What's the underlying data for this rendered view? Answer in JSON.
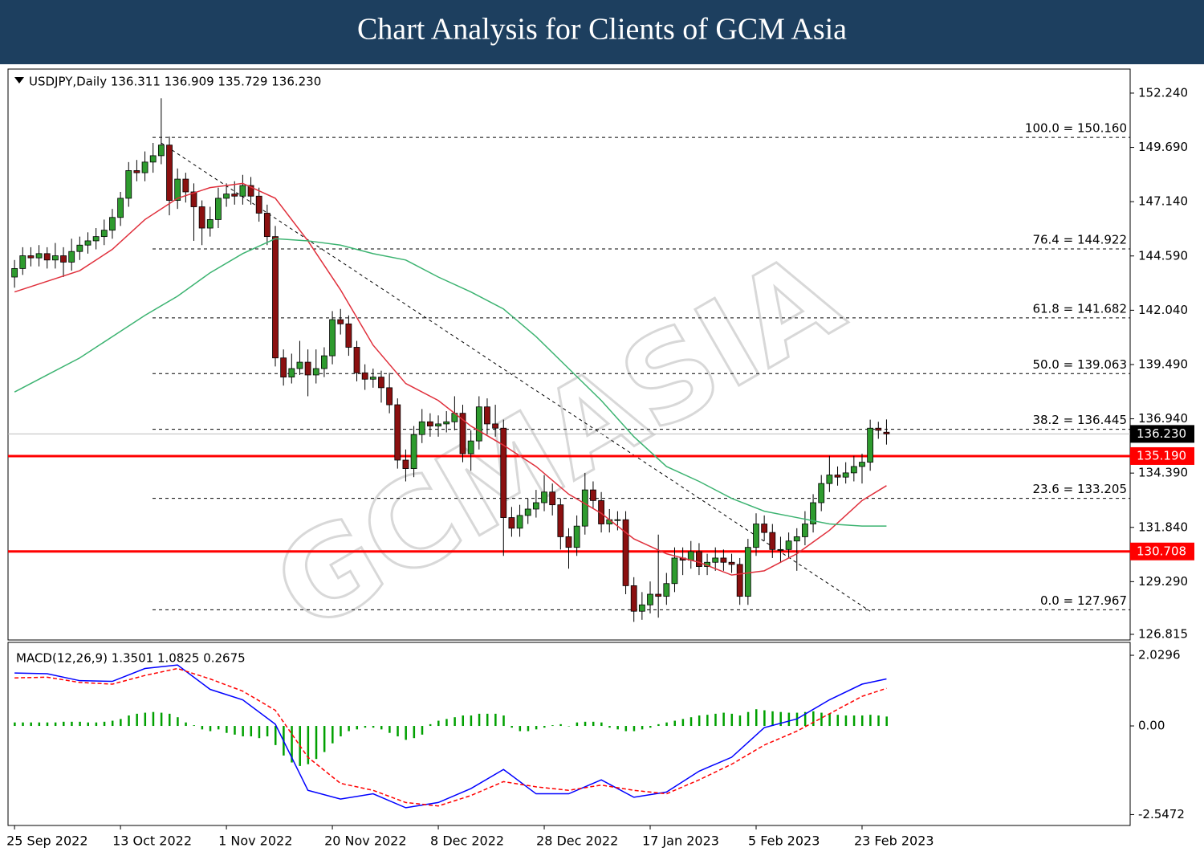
{
  "header": {
    "title": "Chart Analysis for Clients of GCM Asia",
    "watermark": "GCMASIA"
  },
  "chart_data": [
    {
      "type": "candlestick",
      "label": "USDJPY,Daily  136.311 136.909 135.729 136.230",
      "bull_color": "#2e9b2e",
      "bear_color": "#8b1010",
      "xlim": [
        -0.8,
        136.9
      ],
      "ylim": [
        126.55,
        153.37
      ],
      "yticks": [
        {
          "value": 152.24,
          "label": "152.240"
        },
        {
          "value": 149.69,
          "label": "149.690"
        },
        {
          "value": 147.14,
          "label": "147.140"
        },
        {
          "value": 144.59,
          "label": "144.590"
        },
        {
          "value": 142.04,
          "label": "142.040"
        },
        {
          "value": 139.49,
          "label": "139.490"
        },
        {
          "value": 136.94,
          "label": "136.940"
        },
        {
          "value": 134.39,
          "label": "134.390"
        },
        {
          "value": 131.84,
          "label": "131.840"
        },
        {
          "value": 129.29,
          "label": "129.290"
        },
        126.815
      ],
      "candles": [
        [
          143.6,
          144.4,
          143.1,
          144.0
        ],
        [
          144.0,
          145.0,
          143.7,
          144.6
        ],
        [
          144.6,
          145.0,
          144.1,
          144.5
        ],
        [
          144.5,
          145.1,
          144.1,
          144.7
        ],
        [
          144.7,
          145.0,
          144.0,
          144.4
        ],
        [
          144.4,
          145.2,
          144.0,
          144.6
        ],
        [
          144.6,
          145.0,
          143.6,
          144.3
        ],
        [
          144.3,
          145.4,
          143.9,
          144.8
        ],
        [
          144.8,
          145.5,
          144.4,
          145.1
        ],
        [
          145.1,
          145.7,
          144.7,
          145.3
        ],
        [
          145.3,
          145.9,
          144.9,
          145.5
        ],
        [
          145.5,
          146.3,
          145.1,
          145.8
        ],
        [
          145.8,
          146.8,
          145.4,
          146.4
        ],
        [
          146.4,
          147.6,
          146.0,
          147.3
        ],
        [
          147.3,
          149.0,
          146.9,
          148.6
        ],
        [
          148.6,
          149.1,
          148.1,
          148.5
        ],
        [
          148.5,
          149.5,
          148.1,
          149.0
        ],
        [
          149.0,
          149.9,
          148.5,
          149.3
        ],
        [
          149.3,
          152.0,
          148.9,
          149.8
        ],
        [
          149.8,
          150.2,
          146.5,
          147.2
        ],
        [
          147.2,
          148.7,
          146.8,
          148.2
        ],
        [
          148.2,
          148.5,
          147.1,
          147.6
        ],
        [
          147.6,
          148.0,
          145.3,
          146.9
        ],
        [
          146.9,
          147.2,
          145.1,
          145.9
        ],
        [
          145.9,
          146.9,
          145.5,
          146.3
        ],
        [
          146.3,
          147.8,
          145.9,
          147.3
        ],
        [
          147.3,
          148.0,
          146.9,
          147.5
        ],
        [
          147.5,
          148.1,
          147.0,
          147.4
        ],
        [
          147.4,
          148.4,
          147.0,
          147.9
        ],
        [
          147.9,
          148.3,
          147.0,
          147.4
        ],
        [
          147.4,
          147.8,
          146.2,
          146.6
        ],
        [
          146.6,
          147.0,
          145.1,
          145.5
        ],
        [
          145.5,
          146.0,
          139.4,
          139.8
        ],
        [
          139.8,
          140.2,
          138.5,
          138.9
        ],
        [
          138.9,
          140.0,
          138.6,
          139.3
        ],
        [
          139.3,
          140.6,
          139.0,
          139.6
        ],
        [
          139.6,
          140.2,
          138.0,
          139.0
        ],
        [
          139.0,
          140.2,
          138.6,
          139.3
        ],
        [
          139.3,
          140.3,
          138.9,
          139.9
        ],
        [
          139.9,
          142.0,
          139.5,
          141.6
        ],
        [
          141.6,
          142.1,
          140.9,
          141.4
        ],
        [
          141.4,
          141.8,
          139.9,
          140.3
        ],
        [
          140.3,
          140.6,
          138.7,
          139.1
        ],
        [
          139.1,
          139.5,
          138.3,
          138.8
        ],
        [
          138.8,
          139.3,
          138.4,
          138.9
        ],
        [
          138.9,
          139.2,
          137.7,
          138.4
        ],
        [
          138.4,
          139.1,
          137.2,
          137.6
        ],
        [
          137.6,
          137.9,
          134.6,
          135.0
        ],
        [
          135.0,
          135.5,
          134.0,
          134.6
        ],
        [
          134.6,
          136.6,
          134.2,
          136.2
        ],
        [
          136.2,
          137.4,
          135.8,
          136.8
        ],
        [
          136.8,
          137.2,
          136.1,
          136.6
        ],
        [
          136.6,
          137.1,
          136.1,
          136.7
        ],
        [
          136.7,
          137.3,
          136.3,
          136.8
        ],
        [
          136.8,
          138.0,
          136.4,
          137.2
        ],
        [
          137.2,
          137.6,
          134.9,
          135.3
        ],
        [
          135.3,
          136.4,
          134.5,
          135.9
        ],
        [
          135.9,
          138.0,
          135.5,
          137.5
        ],
        [
          137.5,
          137.9,
          136.2,
          136.7
        ],
        [
          136.7,
          137.6,
          136.1,
          136.5
        ],
        [
          136.5,
          136.9,
          130.5,
          132.3
        ],
        [
          132.3,
          132.8,
          131.4,
          131.8
        ],
        [
          131.8,
          132.9,
          131.4,
          132.4
        ],
        [
          132.4,
          133.2,
          132.0,
          132.7
        ],
        [
          132.7,
          133.6,
          132.3,
          133.0
        ],
        [
          133.0,
          134.3,
          132.6,
          133.5
        ],
        [
          133.5,
          133.9,
          132.4,
          132.9
        ],
        [
          132.9,
          133.2,
          130.8,
          131.4
        ],
        [
          131.4,
          131.8,
          129.9,
          130.9
        ],
        [
          130.9,
          132.4,
          130.5,
          131.9
        ],
        [
          131.9,
          134.4,
          131.5,
          133.6
        ],
        [
          133.6,
          134.0,
          132.7,
          133.1
        ],
        [
          133.1,
          133.5,
          131.6,
          132.0
        ],
        [
          132.0,
          132.7,
          131.6,
          132.2
        ],
        [
          132.2,
          132.6,
          131.7,
          132.2
        ],
        [
          132.2,
          132.6,
          128.7,
          129.1
        ],
        [
          129.1,
          129.5,
          127.4,
          127.9
        ],
        [
          127.9,
          128.8,
          127.5,
          128.2
        ],
        [
          128.2,
          129.3,
          127.8,
          128.7
        ],
        [
          128.7,
          131.5,
          127.6,
          128.6
        ],
        [
          128.6,
          129.7,
          128.2,
          129.2
        ],
        [
          129.2,
          130.9,
          128.8,
          130.4
        ],
        [
          130.4,
          130.9,
          129.6,
          130.3
        ],
        [
          130.3,
          131.2,
          129.9,
          130.7
        ],
        [
          130.7,
          131.1,
          129.6,
          130.0
        ],
        [
          130.0,
          130.6,
          129.6,
          130.2
        ],
        [
          130.2,
          130.9,
          129.8,
          130.4
        ],
        [
          130.4,
          130.8,
          129.8,
          130.2
        ],
        [
          130.2,
          130.6,
          129.7,
          130.1
        ],
        [
          130.1,
          130.4,
          128.2,
          128.6
        ],
        [
          128.6,
          131.3,
          128.2,
          130.9
        ],
        [
          130.9,
          132.5,
          130.5,
          132.0
        ],
        [
          132.0,
          132.4,
          131.2,
          131.6
        ],
        [
          131.6,
          132.0,
          130.4,
          130.8
        ],
        [
          130.8,
          131.4,
          130.2,
          130.8
        ],
        [
          130.8,
          131.6,
          130.4,
          131.2
        ],
        [
          131.2,
          131.8,
          129.8,
          131.4
        ],
        [
          131.4,
          132.6,
          131.0,
          132.0
        ],
        [
          132.0,
          133.4,
          131.6,
          133.0
        ],
        [
          133.0,
          134.3,
          132.6,
          133.9
        ],
        [
          133.9,
          135.2,
          133.5,
          134.3
        ],
        [
          134.3,
          134.7,
          133.8,
          134.2
        ],
        [
          134.2,
          134.9,
          133.9,
          134.4
        ],
        [
          134.4,
          135.2,
          134.0,
          134.7
        ],
        [
          134.7,
          135.3,
          133.9,
          134.9
        ],
        [
          134.9,
          136.9,
          134.5,
          136.5
        ],
        [
          136.5,
          136.8,
          136.0,
          136.4
        ],
        [
          136.311,
          136.909,
          135.729,
          136.23
        ]
      ],
      "lines": [
        {
          "color": "#e0303c",
          "x": [
            0,
            4,
            8,
            12,
            16,
            20,
            24,
            28,
            32,
            36,
            40,
            44,
            48,
            52,
            56,
            60,
            64,
            68,
            72,
            76,
            80,
            84,
            88,
            92,
            96,
            100,
            104,
            107
          ],
          "values": [
            142.9,
            143.4,
            143.9,
            144.9,
            146.3,
            147.3,
            147.8,
            148.0,
            147.3,
            145.3,
            143.0,
            140.4,
            138.6,
            137.8,
            136.6,
            135.7,
            134.7,
            133.4,
            132.5,
            131.3,
            130.6,
            130.2,
            129.6,
            129.8,
            130.6,
            131.7,
            133.1,
            133.8
          ]
        },
        {
          "color": "#3cb371",
          "x": [
            0,
            4,
            8,
            12,
            16,
            20,
            24,
            28,
            32,
            36,
            40,
            44,
            48,
            52,
            56,
            60,
            64,
            68,
            72,
            76,
            80,
            84,
            88,
            92,
            96,
            100,
            104,
            107
          ],
          "values": [
            138.2,
            139.0,
            139.8,
            140.8,
            141.8,
            142.7,
            143.8,
            144.7,
            145.4,
            145.3,
            145.1,
            144.7,
            144.4,
            143.6,
            142.9,
            142.1,
            140.8,
            139.3,
            137.8,
            136.1,
            134.7,
            134.0,
            133.2,
            132.6,
            132.3,
            132.0,
            131.9,
            131.9
          ]
        }
      ],
      "trendline": {
        "x": [
          18,
          105
        ],
        "values": [
          149.9,
          127.9
        ]
      },
      "fib_levels": [
        {
          "value": 150.16,
          "label": "100.0 = 150.160"
        },
        {
          "value": 144.922,
          "label": "76.4 = 144.922"
        },
        {
          "value": 141.682,
          "label": "61.8 = 141.682"
        },
        {
          "value": 139.063,
          "label": "50.0 = 139.063"
        },
        {
          "value": 136.445,
          "label": "38.2 = 136.445"
        },
        {
          "value": 133.205,
          "label": "23.6 = 133.205"
        },
        {
          "value": 127.967,
          "label": "0.0 = 127.967"
        }
      ],
      "price_lines": [
        {
          "value": 135.19,
          "label": "135.190",
          "color": "#ff0000"
        },
        {
          "value": 130.708,
          "label": "130.708",
          "color": "#ff0000"
        }
      ],
      "current_price": {
        "value": 136.23,
        "label": "136.230",
        "color": "#000000"
      }
    },
    {
      "type": "macd",
      "label": "MACD(12,26,9) 1.3501 1.0825 0.2675",
      "xlim": [
        -0.8,
        136.9
      ],
      "ylim": [
        -2.86,
        2.4
      ],
      "yticks": [
        2.0296,
        {
          "value": 0,
          "label": "0.00"
        },
        -2.5472
      ],
      "xticks": [
        {
          "value": 0,
          "label": "25 Sep 2022"
        },
        {
          "value": 13,
          "label": "13 Oct 2022"
        },
        {
          "value": 26,
          "label": "1 Nov 2022"
        },
        {
          "value": 39,
          "label": "20 Nov 2022"
        },
        {
          "value": 52,
          "label": "8 Dec 2022"
        },
        {
          "value": 65,
          "label": "28 Dec 2022"
        },
        {
          "value": 78,
          "label": "17 Jan 2023"
        },
        {
          "value": 91,
          "label": "5 Feb 2023"
        },
        {
          "value": 104,
          "label": "23 Feb 2023"
        }
      ],
      "histogram": {
        "color": "#00a000",
        "values": [
          0.1,
          0.1,
          0.1,
          0.1,
          0.1,
          0.1,
          0.12,
          0.12,
          0.12,
          0.1,
          0.1,
          0.12,
          0.15,
          0.2,
          0.3,
          0.35,
          0.38,
          0.4,
          0.38,
          0.35,
          0.25,
          0.1,
          0.02,
          -0.1,
          -0.15,
          -0.1,
          -0.2,
          -0.25,
          -0.3,
          -0.3,
          -0.35,
          -0.3,
          -0.55,
          -0.85,
          -1.05,
          -1.15,
          -1.1,
          -0.95,
          -0.75,
          -0.5,
          -0.3,
          -0.15,
          -0.1,
          -0.05,
          -0.05,
          -0.1,
          -0.2,
          -0.3,
          -0.4,
          -0.35,
          -0.25,
          0.05,
          0.15,
          0.2,
          0.25,
          0.3,
          0.3,
          0.35,
          0.35,
          0.35,
          0.3,
          -0.05,
          -0.15,
          -0.15,
          -0.1,
          -0.05,
          0.02,
          0.05,
          0.0,
          0.1,
          0.12,
          0.12,
          0.1,
          -0.05,
          -0.1,
          -0.15,
          -0.15,
          -0.1,
          -0.05,
          0.05,
          0.1,
          0.15,
          0.2,
          0.25,
          0.3,
          0.32,
          0.35,
          0.38,
          0.35,
          0.3,
          0.4,
          0.48,
          0.45,
          0.42,
          0.4,
          0.38,
          0.38,
          0.4,
          0.42,
          0.38,
          0.35,
          0.32,
          0.3,
          0.3,
          0.3,
          0.32,
          0.3,
          0.27
        ]
      },
      "lines": [
        {
          "color": "#0000ff",
          "dashed": false,
          "x": [
            0,
            4,
            8,
            12,
            16,
            20,
            24,
            28,
            32,
            36,
            40,
            44,
            48,
            52,
            56,
            60,
            64,
            68,
            72,
            76,
            80,
            84,
            88,
            92,
            96,
            100,
            104,
            107
          ],
          "values": [
            1.52,
            1.5,
            1.3,
            1.28,
            1.65,
            1.75,
            1.05,
            0.75,
            0.05,
            -1.85,
            -2.1,
            -1.95,
            -2.35,
            -2.2,
            -1.8,
            -1.25,
            -1.95,
            -1.95,
            -1.55,
            -2.05,
            -1.9,
            -1.3,
            -0.9,
            -0.05,
            0.2,
            0.75,
            1.2,
            1.35
          ]
        },
        {
          "color": "#ff0000",
          "dashed": true,
          "x": [
            0,
            4,
            8,
            12,
            16,
            20,
            24,
            28,
            32,
            36,
            40,
            44,
            48,
            52,
            56,
            60,
            64,
            68,
            72,
            76,
            80,
            84,
            88,
            92,
            96,
            100,
            104,
            107
          ],
          "values": [
            1.38,
            1.4,
            1.25,
            1.2,
            1.45,
            1.65,
            1.35,
            1.0,
            0.45,
            -0.9,
            -1.65,
            -1.85,
            -2.2,
            -2.3,
            -2.0,
            -1.6,
            -1.75,
            -1.85,
            -1.7,
            -1.85,
            -1.95,
            -1.55,
            -1.1,
            -0.55,
            -0.15,
            0.35,
            0.85,
            1.08
          ]
        }
      ]
    }
  ]
}
